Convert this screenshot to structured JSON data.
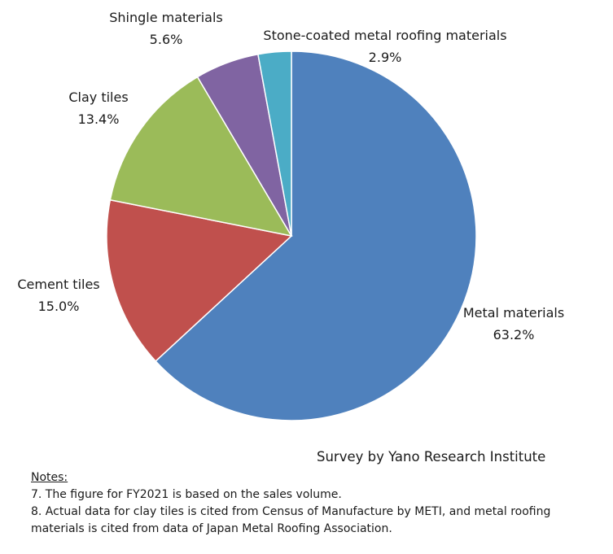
{
  "chart_data": {
    "type": "pie",
    "start": "12 o'clock, clockwise",
    "slices": [
      {
        "label": "Metal materials",
        "value": 63.2,
        "value_label": "63.2%",
        "color": "#4F81BD"
      },
      {
        "label": "Cement tiles",
        "value": 15.0,
        "value_label": "15.0%",
        "color": "#C0504D"
      },
      {
        "label": "Clay tiles",
        "value": 13.4,
        "value_label": "13.4%",
        "color": "#9BBB59"
      },
      {
        "label": "Shingle materials",
        "value": 5.6,
        "value_label": "5.6%",
        "color": "#8064A2"
      },
      {
        "label": "Stone-coated metal roofing materials",
        "value": 2.9,
        "value_label": "2.9%",
        "color": "#4BACC6"
      }
    ]
  },
  "source": "Survey by Yano Research Institute",
  "notes": {
    "heading": "Notes:",
    "items": [
      "7. The figure for FY2021 is based on the sales volume.",
      "8. Actual data for clay tiles is cited from Census of Manufacture by METI, and metal roofing",
      "materials is cited from data of Japan Metal Roofing Association."
    ]
  }
}
